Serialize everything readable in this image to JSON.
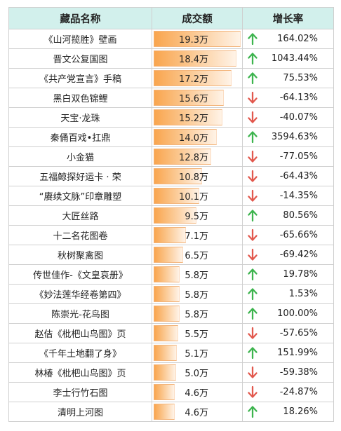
{
  "table": {
    "headers": [
      "藏品名称",
      "成交额",
      "增长率"
    ],
    "max_value": 19.3,
    "colors": {
      "up": "#3db44e",
      "down": "#e2584d",
      "header_bg": "#d2f0ec"
    },
    "rows": [
      {
        "name": "《山河揽胜》壁画",
        "value": 19.3,
        "value_label": "19.3万",
        "growth_label": "164.02%",
        "direction": "up"
      },
      {
        "name": "晋文公复国图",
        "value": 18.4,
        "value_label": "18.4万",
        "growth_label": "1043.44%",
        "direction": "up"
      },
      {
        "name": "《共产党宣言》手稿",
        "value": 17.2,
        "value_label": "17.2万",
        "growth_label": "75.53%",
        "direction": "up"
      },
      {
        "name": "黑白双色锦鲤",
        "value": 15.6,
        "value_label": "15.6万",
        "growth_label": "-64.13%",
        "direction": "down"
      },
      {
        "name": "天宝·龙珠",
        "value": 15.2,
        "value_label": "15.2万",
        "growth_label": "-40.07%",
        "direction": "down"
      },
      {
        "name": "秦俑百戏•扛鼎",
        "value": 14.0,
        "value_label": "14.0万",
        "growth_label": "3594.63%",
        "direction": "up"
      },
      {
        "name": "小金猫",
        "value": 12.8,
        "value_label": "12.8万",
        "growth_label": "-77.05%",
        "direction": "down"
      },
      {
        "name": "五福鲸探好运卡 · 荣",
        "value": 10.8,
        "value_label": "10.8万",
        "growth_label": "-64.43%",
        "direction": "down"
      },
      {
        "name": "“赓续文脉”印章雕塑",
        "value": 10.1,
        "value_label": "10.1万",
        "growth_label": "-14.35%",
        "direction": "down"
      },
      {
        "name": "大匠丝路",
        "value": 9.5,
        "value_label": "9.5万",
        "growth_label": "80.56%",
        "direction": "up"
      },
      {
        "name": "十二名花图卷",
        "value": 7.1,
        "value_label": "7.1万",
        "growth_label": "-65.66%",
        "direction": "down"
      },
      {
        "name": "秋树聚禽图",
        "value": 6.5,
        "value_label": "6.5万",
        "growth_label": "-69.42%",
        "direction": "down"
      },
      {
        "name": "传世佳作-《文皇哀册》",
        "value": 5.8,
        "value_label": "5.8万",
        "growth_label": "19.78%",
        "direction": "up"
      },
      {
        "name": "《妙法莲华经卷第四》",
        "value": 5.8,
        "value_label": "5.8万",
        "growth_label": "1.53%",
        "direction": "up"
      },
      {
        "name": "陈崇光-花鸟图",
        "value": 5.8,
        "value_label": "5.8万",
        "growth_label": "100.00%",
        "direction": "up"
      },
      {
        "name": "赵佶《枇杷山鸟图》页",
        "value": 5.5,
        "value_label": "5.5万",
        "growth_label": "-57.65%",
        "direction": "down"
      },
      {
        "name": "《千年土地翻了身》",
        "value": 5.1,
        "value_label": "5.1万",
        "growth_label": "151.99%",
        "direction": "up"
      },
      {
        "name": "林椿《枇杷山鸟图》页",
        "value": 5.0,
        "value_label": "5.0万",
        "growth_label": "-59.38%",
        "direction": "down"
      },
      {
        "name": "李士行竹石图",
        "value": 4.6,
        "value_label": "4.6万",
        "growth_label": "-24.87%",
        "direction": "down"
      },
      {
        "name": "清明上河图",
        "value": 4.6,
        "value_label": "4.6万",
        "growth_label": "18.26%",
        "direction": "up"
      }
    ]
  },
  "chart_data": {
    "type": "table",
    "columns": [
      "藏品名称",
      "成交额",
      "增长率"
    ],
    "categories": [
      "《山河揽胜》壁画",
      "晋文公复国图",
      "《共产党宣言》手稿",
      "黑白双色锦鲤",
      "天宝·龙珠",
      "秦俑百戏•扛鼎",
      "小金猫",
      "五福鲸探好运卡 · 荣",
      "“赓续文脉”印章雕塑",
      "大匠丝路",
      "十二名花图卷",
      "秋树聚禽图",
      "传世佳作-《文皇哀册》",
      "《妙法莲华经卷第四》",
      "陈崇光-花鸟图",
      "赵佶《枇杷山鸟图》页",
      "《千年土地翻了身》",
      "林椿《枇杷山鸟图》页",
      "李士行竹石图",
      "清明上河图"
    ],
    "series": [
      {
        "name": "成交额",
        "unit": "万",
        "values": [
          19.3,
          18.4,
          17.2,
          15.6,
          15.2,
          14.0,
          12.8,
          10.8,
          10.1,
          9.5,
          7.1,
          6.5,
          5.8,
          5.8,
          5.8,
          5.5,
          5.1,
          5.0,
          4.6,
          4.6
        ]
      },
      {
        "name": "增长率",
        "unit": "%",
        "values": [
          164.02,
          1043.44,
          75.53,
          -64.13,
          -40.07,
          3594.63,
          -77.05,
          -64.43,
          -14.35,
          80.56,
          -65.66,
          -69.42,
          19.78,
          1.53,
          100.0,
          -57.65,
          151.99,
          -59.38,
          -24.87,
          18.26
        ]
      }
    ]
  }
}
